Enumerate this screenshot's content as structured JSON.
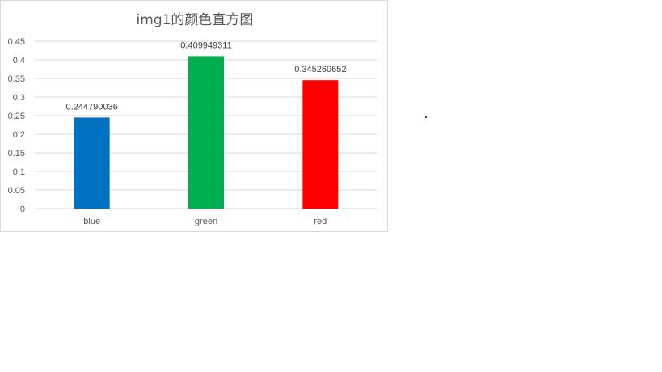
{
  "chart_data": {
    "type": "bar",
    "title": "img1的颜色直方图",
    "xlabel": "",
    "ylabel": "",
    "categories": [
      "blue",
      "green",
      "red"
    ],
    "values": [
      0.244790036,
      0.409949311,
      0.345260652
    ],
    "value_labels": [
      "0.244790036",
      "0.409949311",
      "0.345260652"
    ],
    "bar_colors": [
      "#0070c0",
      "#00b050",
      "#ff0000"
    ],
    "ylim": [
      0,
      0.45
    ],
    "y_ticks": [
      0,
      0.05,
      0.1,
      0.15,
      0.2,
      0.25,
      0.3,
      0.35,
      0.4,
      0.45
    ],
    "y_tick_labels": [
      "0",
      "0.05",
      "0.1",
      "0.15",
      "0.2",
      "0.25",
      "0.3",
      "0.35",
      "0.4",
      "0.45"
    ],
    "grid": true,
    "legend": "none",
    "gridline_color": "#d9d9d9",
    "text_color": "#595959"
  },
  "extra_mark": "."
}
